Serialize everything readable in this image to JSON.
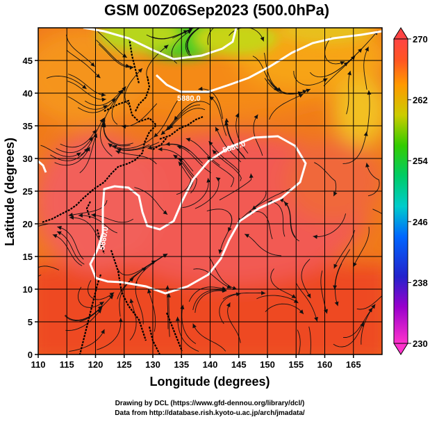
{
  "title": "GSM 00Z06Sep2023 (500.0hPa)",
  "xlabel": "Longitude (degrees)",
  "ylabel": "Latitude  (degrees)",
  "x_ticks": [
    "110",
    "115",
    "120",
    "125",
    "130",
    "135",
    "140",
    "145",
    "150",
    "155",
    "160",
    "165"
  ],
  "y_ticks": [
    "0",
    "5",
    "10",
    "15",
    "20",
    "25",
    "30",
    "35",
    "40",
    "45"
  ],
  "colorbar": {
    "ticks": [
      "230",
      "238",
      "246",
      "254",
      "262",
      "270"
    ],
    "tick_values": [
      230,
      238,
      246,
      254,
      262,
      270
    ],
    "range": [
      230,
      270
    ]
  },
  "contour_labels": [
    "5880.0",
    "5880.0",
    "5880.0"
  ],
  "credits": {
    "line1": "Drawing by DCL (https://www.gfd-dennou.org/library/dcl/)",
    "line2": "Data from http://database.rish.kyoto-u.ac.jp/arch/jmadata/"
  },
  "chart_data": {
    "type": "heatmap",
    "title": "GSM 00Z06Sep2023 (500.0hPa)",
    "xlabel": "Longitude (degrees)",
    "ylabel": "Latitude  (degrees)",
    "xlim": [
      110,
      170
    ],
    "ylim": [
      0,
      50
    ],
    "x_ticks": [
      110,
      115,
      120,
      125,
      130,
      135,
      140,
      145,
      150,
      155,
      160,
      165
    ],
    "y_ticks": [
      0,
      5,
      10,
      15,
      20,
      25,
      30,
      35,
      40,
      45
    ],
    "color_range": [
      230,
      270
    ],
    "contour_value": 5880.0,
    "grid": true,
    "legend": "colorbar-right"
  }
}
